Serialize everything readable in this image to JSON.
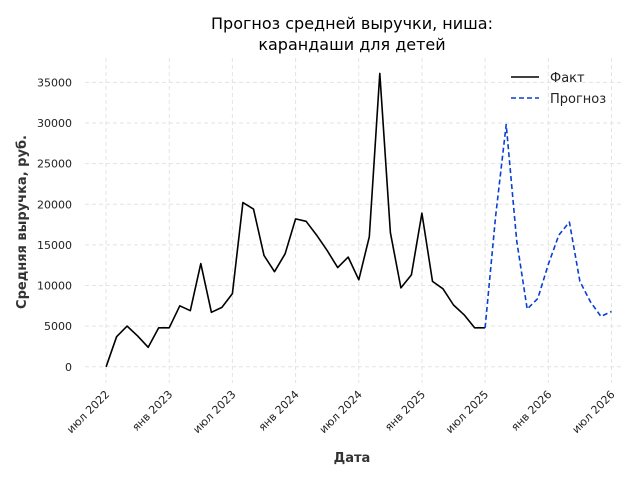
{
  "chart_data": {
    "type": "line",
    "title_lines": [
      "Прогноз средней выручки, ниша:",
      "карандаши для детей"
    ],
    "xlabel": "Дата",
    "ylabel": "Средняя выручка, руб.",
    "x_start": "2022-05",
    "x_end": "2026-08",
    "ylim": [
      -2000,
      38000
    ],
    "yticks": [
      0,
      5000,
      10000,
      15000,
      20000,
      25000,
      30000,
      35000
    ],
    "xticks": [
      {
        "date": "2022-07",
        "label": "июл 2022"
      },
      {
        "date": "2023-01",
        "label": "янв 2023"
      },
      {
        "date": "2023-07",
        "label": "июл 2023"
      },
      {
        "date": "2024-01",
        "label": "янв 2024"
      },
      {
        "date": "2024-07",
        "label": "июл 2024"
      },
      {
        "date": "2025-01",
        "label": "янв 2025"
      },
      {
        "date": "2025-07",
        "label": "июл 2025"
      },
      {
        "date": "2026-01",
        "label": "янв 2026"
      },
      {
        "date": "2026-07",
        "label": "июл 2026"
      }
    ],
    "grid": true,
    "legend_position": "top-right",
    "series": [
      {
        "name": "Факт",
        "color": "#000000",
        "style": "solid",
        "x": [
          "2022-07",
          "2022-08",
          "2022-09",
          "2022-10",
          "2022-11",
          "2022-12",
          "2023-01",
          "2023-02",
          "2023-03",
          "2023-04",
          "2023-05",
          "2023-06",
          "2023-07",
          "2023-08",
          "2023-09",
          "2023-10",
          "2023-11",
          "2023-12",
          "2024-01",
          "2024-02",
          "2024-03",
          "2024-04",
          "2024-05",
          "2024-06",
          "2024-07",
          "2024-08",
          "2024-09",
          "2024-10",
          "2024-11",
          "2024-12",
          "2025-01",
          "2025-02",
          "2025-03",
          "2025-04",
          "2025-05",
          "2025-06",
          "2025-07"
        ],
        "y": [
          0,
          3700,
          5000,
          3800,
          2400,
          4800,
          4800,
          7500,
          6900,
          12700,
          6700,
          7300,
          9000,
          20200,
          19400,
          13700,
          11700,
          13900,
          18200,
          17900,
          16200,
          14300,
          12200,
          13500,
          10700,
          16000,
          36100,
          16500,
          9700,
          11300,
          18900,
          10500,
          9600,
          7600,
          6400,
          4800,
          4800
        ]
      },
      {
        "name": "Прогноз",
        "color": "#0a3fd1",
        "style": "dashed",
        "x": [
          "2025-07",
          "2025-08",
          "2025-09",
          "2025-10",
          "2025-11",
          "2025-12",
          "2026-01",
          "2026-02",
          "2026-03",
          "2026-04",
          "2026-05",
          "2026-06",
          "2026-07"
        ],
        "y": [
          4800,
          18500,
          29800,
          15500,
          7100,
          8400,
          12600,
          16200,
          17800,
          10500,
          8000,
          6200,
          6800
        ]
      }
    ]
  }
}
